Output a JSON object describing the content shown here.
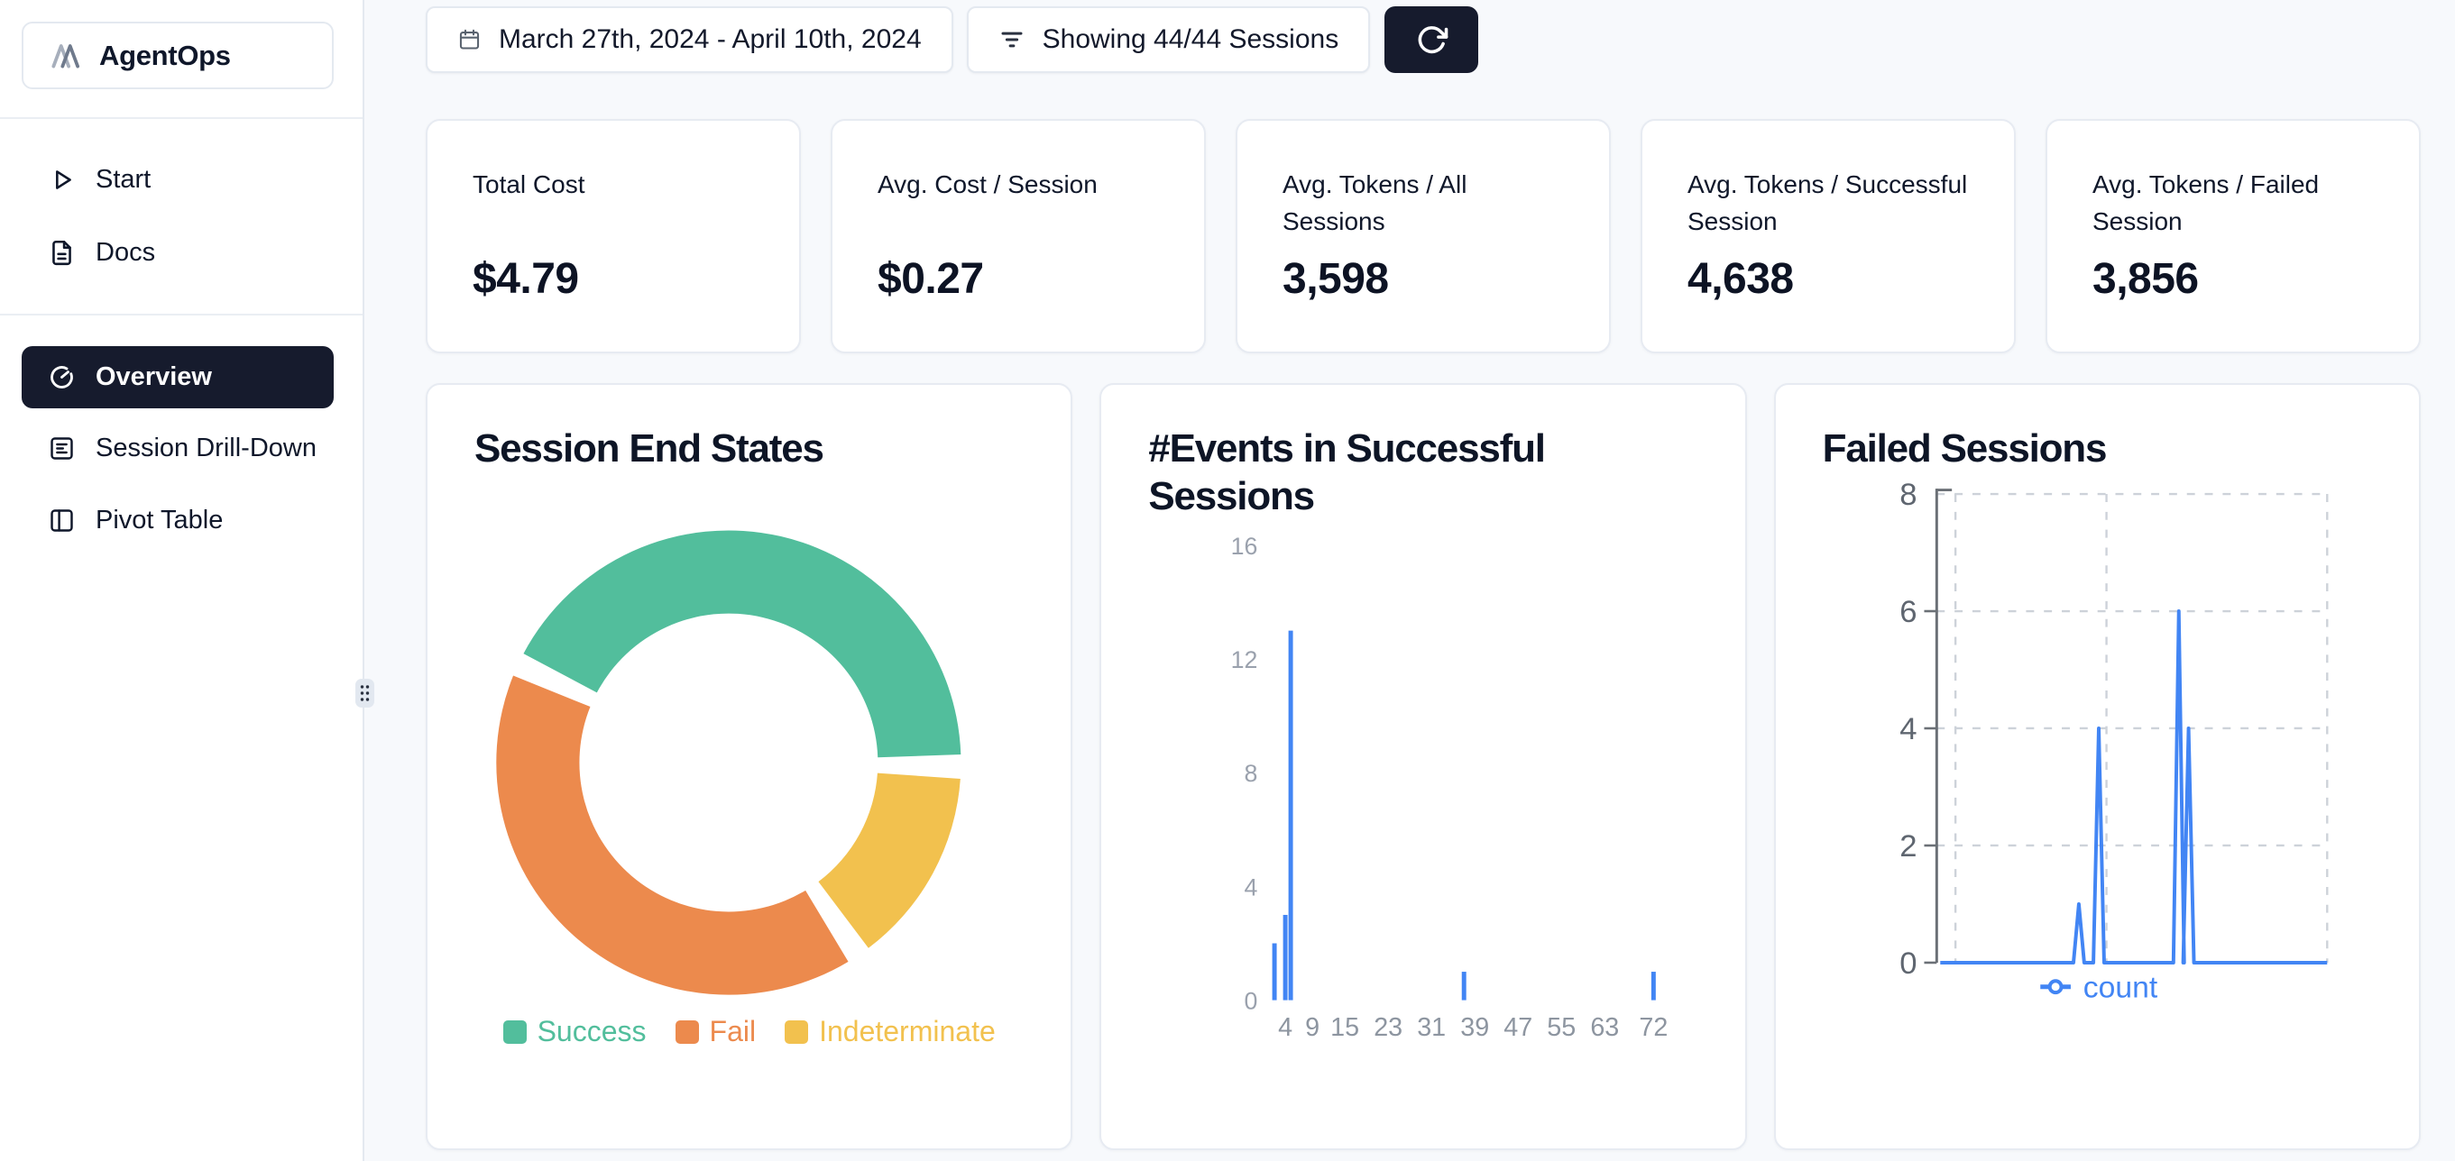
{
  "sidebar": {
    "brand": "AgentOps",
    "menu": [
      {
        "icon": "play-icon",
        "label": "Start"
      },
      {
        "icon": "file-text-icon",
        "label": "Docs"
      }
    ],
    "nav": [
      {
        "icon": "gauge-icon",
        "label": "Overview",
        "active": true
      },
      {
        "icon": "list-box-icon",
        "label": "Session Drill-Down",
        "active": false
      },
      {
        "icon": "columns-icon",
        "label": "Pivot Table",
        "active": false
      }
    ]
  },
  "topbar": {
    "date_range": "March 27th, 2024 - April 10th, 2024",
    "sessions_filter": "Showing 44/44 Sessions"
  },
  "stats": [
    {
      "label": "Total Cost",
      "value": "$4.79"
    },
    {
      "label": "Avg. Cost / Session",
      "value": "$0.27"
    },
    {
      "label": "Avg. Tokens / All Sessions",
      "value": "3,598"
    },
    {
      "label": "Avg. Tokens / Successful Session",
      "value": "4,638"
    },
    {
      "label": "Avg. Tokens / Failed Session",
      "value": "3,856"
    }
  ],
  "colors": {
    "accent_dark": "#161b2d",
    "success": "#52be9c",
    "fail": "#ec8a4d",
    "indeterminate": "#f2c14e",
    "chart_blue": "#4285f4",
    "grid_dash": "#cdd2d9",
    "axis_gray": "#6b7076",
    "tick_gray_small": "#9aa1ad",
    "tick_gray_big": "#5f6670"
  },
  "chart_data": [
    {
      "type": "pie",
      "title": "Session End States",
      "donut": true,
      "legend_position": "bottom",
      "segments": [
        {
          "label": "Success",
          "color": "#52be9c",
          "start_deg": 152,
          "sweep_deg": 150,
          "pct_est": 43.6
        },
        {
          "label": "Fail",
          "color": "#ec8a4d",
          "start_deg": -59,
          "sweep_deg": 143,
          "pct_est": 41.6
        },
        {
          "label": "Indeterminate",
          "color": "#f2c14e",
          "start_deg": -4,
          "sweep_deg": 49,
          "pct_est": 14.8
        }
      ]
    },
    {
      "type": "bar",
      "title": "#Events in Successful Sessions",
      "bar_color": "#4285f4",
      "x_ticks": [
        4,
        9,
        15,
        23,
        31,
        39,
        47,
        55,
        63,
        72
      ],
      "y_ticks": [
        0,
        4,
        8,
        12,
        16
      ],
      "ylim": [
        0,
        16
      ],
      "grid": false,
      "bars": [
        {
          "x": 2,
          "count": 2
        },
        {
          "x": 4,
          "count": 3
        },
        {
          "x": 5,
          "count": 13
        },
        {
          "x": 37,
          "count": 1
        },
        {
          "x": 72,
          "count": 1
        }
      ]
    },
    {
      "type": "line",
      "title": "Failed Sessions",
      "legend": "count",
      "line_color": "#4285f4",
      "y_ticks": [
        0,
        2,
        4,
        6,
        8
      ],
      "ylim": [
        0,
        8
      ],
      "grid": true,
      "spikes": [
        {
          "pos": 0.364,
          "count": 1
        },
        {
          "pos": 0.415,
          "count": 4
        },
        {
          "pos": 0.62,
          "count": 6
        },
        {
          "pos": 0.645,
          "count": 4
        }
      ]
    }
  ]
}
